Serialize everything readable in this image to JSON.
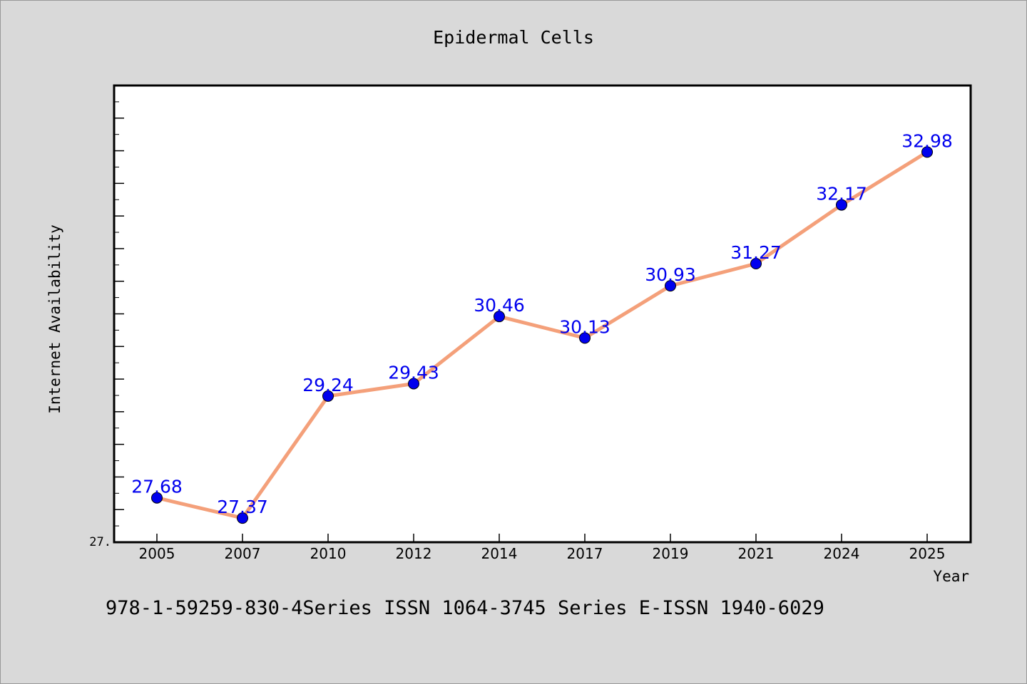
{
  "chart_data": {
    "type": "line",
    "title": "Epidermal Cells",
    "xlabel": "Year",
    "ylabel": "Internet Availability",
    "categories": [
      "2005",
      "2007",
      "2010",
      "2012",
      "2014",
      "2017",
      "2019",
      "2021",
      "2024",
      "2025"
    ],
    "series": [
      {
        "name": "",
        "values": [
          27.68,
          27.37,
          29.24,
          29.43,
          30.46,
          30.13,
          30.93,
          31.27,
          32.17,
          32.98
        ]
      }
    ],
    "data_labels": [
      "27.68",
      "27.37",
      "29.24",
      "29.43",
      "30.46",
      "30.13",
      "30.93",
      "31.27",
      "32.17",
      "32.98"
    ],
    "ylim": [
      27.0,
      34.0
    ],
    "y_tick_labels": [
      "27."
    ],
    "grid": false,
    "legend": "none",
    "colors": {
      "line": "#f4a07a",
      "marker": "#0000ee",
      "label": "#0000ee",
      "background": "#d9d9d9",
      "plot_background": "#ffffff"
    }
  },
  "footer": {
    "text": "978-1-59259-830-4Series ISSN 1064-3745 Series E-ISSN 1940-6029"
  }
}
